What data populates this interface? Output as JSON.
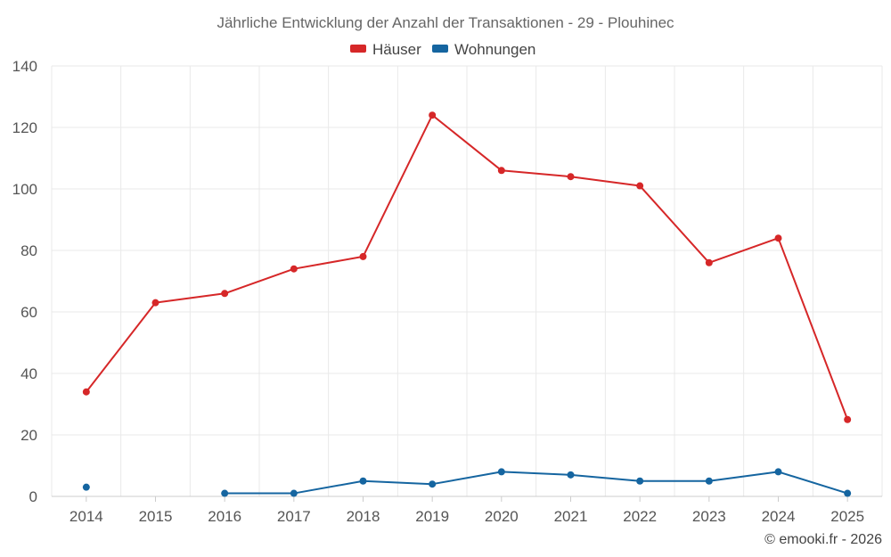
{
  "chart_data": {
    "type": "line",
    "title": "Jährliche Entwicklung der Anzahl der Transaktionen - 29 - Plouhinec",
    "categories": [
      "2014",
      "2015",
      "2016",
      "2017",
      "2018",
      "2019",
      "2020",
      "2021",
      "2022",
      "2023",
      "2024",
      "2025"
    ],
    "series": [
      {
        "name": "Häuser",
        "color": "#d62728",
        "values": [
          34,
          63,
          66,
          74,
          78,
          124,
          106,
          104,
          101,
          76,
          84,
          25
        ]
      },
      {
        "name": "Wohnungen",
        "color": "#1565a0",
        "values": [
          3,
          null,
          1,
          1,
          5,
          4,
          8,
          7,
          5,
          5,
          8,
          1
        ]
      }
    ],
    "ylim": [
      0,
      140
    ],
    "yticks": [
      0,
      20,
      40,
      60,
      80,
      100,
      120,
      140
    ],
    "grid": true,
    "legend": "top-center",
    "credit": "© emooki.fr - 2026"
  }
}
